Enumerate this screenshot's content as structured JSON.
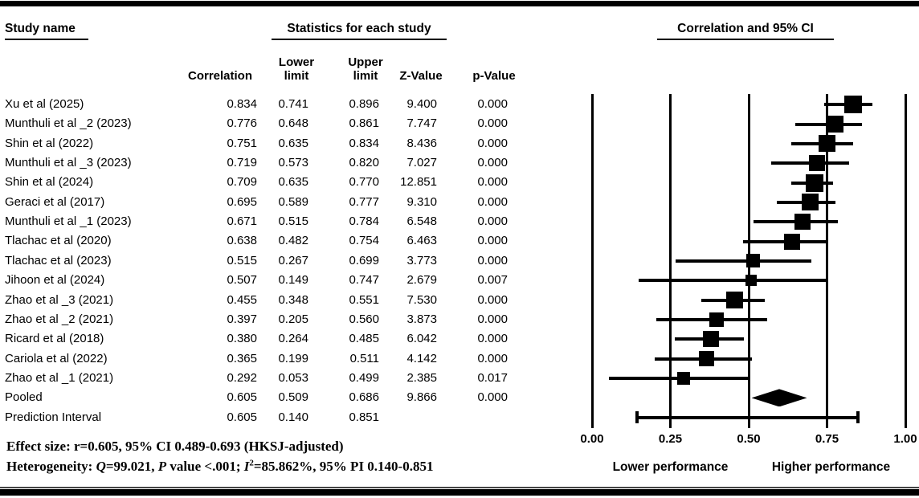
{
  "header": {
    "study_name": "Study name",
    "stats_title": "Statistics for each study",
    "plot_title": "Correlation and 95% CI"
  },
  "columns": {
    "correlation": "Correlation",
    "lower": "Lower\nlimit",
    "upper": "Upper\nlimit",
    "z": "Z-Value",
    "p": "p-Value"
  },
  "chart_data": {
    "type": "forest",
    "title": "Correlation and 95% CI",
    "xlim": [
      0.0,
      1.0
    ],
    "x_tick_values": [
      0.0,
      0.25,
      0.5,
      0.75,
      1.0
    ],
    "x_tick_labels": [
      "0.00",
      "0.25",
      "0.50",
      "0.75",
      "1.00"
    ],
    "x_caption_left": "Lower performance",
    "x_caption_right": "Higher performance",
    "rows": [
      {
        "name": "Xu et al (2025)",
        "kind": "study",
        "correlation": "0.834",
        "lower": "0.741",
        "upper": "0.896",
        "z": "9.400",
        "p": "0.000"
      },
      {
        "name": "Munthuli et al _2 (2023)",
        "kind": "study",
        "correlation": "0.776",
        "lower": "0.648",
        "upper": "0.861",
        "z": "7.747",
        "p": "0.000"
      },
      {
        "name": "Shin et al (2022)",
        "kind": "study",
        "correlation": "0.751",
        "lower": "0.635",
        "upper": "0.834",
        "z": "8.436",
        "p": "0.000"
      },
      {
        "name": "Munthuli et al _3 (2023)",
        "kind": "study",
        "correlation": "0.719",
        "lower": "0.573",
        "upper": "0.820",
        "z": "7.027",
        "p": "0.000"
      },
      {
        "name": "Shin et al (2024)",
        "kind": "study",
        "correlation": "0.709",
        "lower": "0.635",
        "upper": "0.770",
        "z": "12.851",
        "p": "0.000"
      },
      {
        "name": "Geraci et al (2017)",
        "kind": "study",
        "correlation": "0.695",
        "lower": "0.589",
        "upper": "0.777",
        "z": "9.310",
        "p": "0.000"
      },
      {
        "name": "Munthuli et al _1 (2023)",
        "kind": "study",
        "correlation": "0.671",
        "lower": "0.515",
        "upper": "0.784",
        "z": "6.548",
        "p": "0.000"
      },
      {
        "name": "Tlachac et al (2020)",
        "kind": "study",
        "correlation": "0.638",
        "lower": "0.482",
        "upper": "0.754",
        "z": "6.463",
        "p": "0.000"
      },
      {
        "name": "Tlachac et al (2023)",
        "kind": "study",
        "correlation": "0.515",
        "lower": "0.267",
        "upper": "0.699",
        "z": "3.773",
        "p": "0.000"
      },
      {
        "name": "Jihoon et al (2024)",
        "kind": "study",
        "correlation": "0.507",
        "lower": "0.149",
        "upper": "0.747",
        "z": "2.679",
        "p": "0.007"
      },
      {
        "name": "Zhao et al _3 (2021)",
        "kind": "study",
        "correlation": "0.455",
        "lower": "0.348",
        "upper": "0.551",
        "z": "7.530",
        "p": "0.000"
      },
      {
        "name": "Zhao et al _2 (2021)",
        "kind": "study",
        "correlation": "0.397",
        "lower": "0.205",
        "upper": "0.560",
        "z": "3.873",
        "p": "0.000"
      },
      {
        "name": "Ricard et al (2018)",
        "kind": "study",
        "correlation": "0.380",
        "lower": "0.264",
        "upper": "0.485",
        "z": "6.042",
        "p": "0.000"
      },
      {
        "name": "Cariola et al (2022)",
        "kind": "study",
        "correlation": "0.365",
        "lower": "0.199",
        "upper": "0.511",
        "z": "4.142",
        "p": "0.000"
      },
      {
        "name": "Zhao et al _1 (2021)",
        "kind": "study",
        "correlation": "0.292",
        "lower": "0.053",
        "upper": "0.499",
        "z": "2.385",
        "p": "0.017"
      },
      {
        "name": "Pooled",
        "kind": "pooled",
        "correlation": "0.605",
        "lower": "0.509",
        "upper": "0.686",
        "z": "9.866",
        "p": "0.000"
      },
      {
        "name": "Prediction Interval",
        "kind": "prediction",
        "correlation": "0.605",
        "lower": "0.140",
        "upper": "0.851",
        "z": "",
        "p": ""
      }
    ]
  },
  "footer": {
    "line1": [
      {
        "text": "Effect size: r=0.605, 95% CI 0.489-0.693 (HKSJ-adjusted)",
        "italic": false
      }
    ],
    "line2": [
      {
        "text": "Heterogeneity: ",
        "italic": false
      },
      {
        "text": "Q",
        "italic": true
      },
      {
        "text": "=99.021, ",
        "italic": false
      },
      {
        "text": "P",
        "italic": true
      },
      {
        "text": " value <.001; ",
        "italic": false
      },
      {
        "text": "I",
        "italic": true
      },
      {
        "text": "2",
        "italic": false,
        "sup": true
      },
      {
        "text": "=85.862%, 95% PI 0.140-0.851",
        "italic": false
      }
    ]
  }
}
